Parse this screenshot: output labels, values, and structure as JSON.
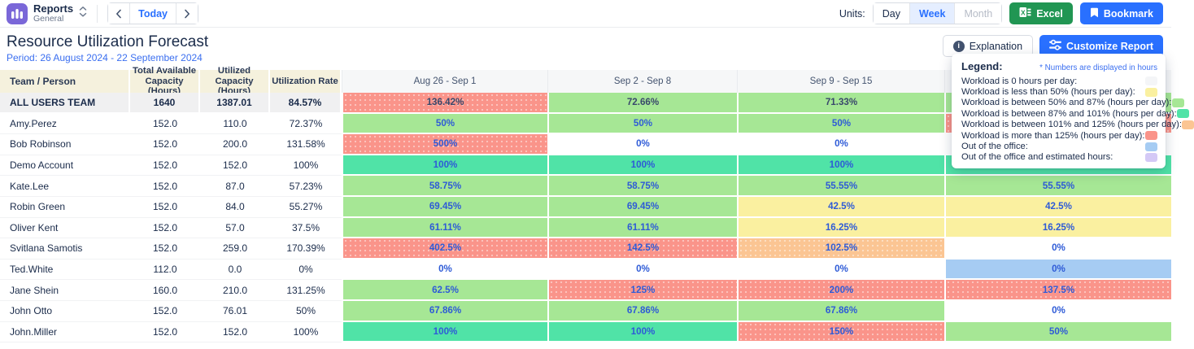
{
  "topbar": {
    "app": {
      "title": "Reports",
      "subtitle": "General"
    },
    "nav": {
      "today_label": "Today"
    },
    "units": {
      "label": "Units:",
      "options": [
        "Day",
        "Week",
        "Month"
      ],
      "selected": "Week"
    },
    "excel_label": "Excel",
    "bookmark_label": "Bookmark"
  },
  "report": {
    "title": "Resource Utilization Forecast",
    "period": "Period: 26 August 2024 - 22 September 2024",
    "explanation_label": "Explanation",
    "customize_label": "Customize Report"
  },
  "legend": {
    "title": "Legend:",
    "note": "* Numbers are displayed in hours",
    "items": [
      {
        "label": "Workload is 0 hours per day:",
        "color": "grey"
      },
      {
        "label": "Workload is less than 50% (hours per day):",
        "color": "yellow"
      },
      {
        "label": "Workload is between 50% and 87% (hours per day):",
        "color": "green"
      },
      {
        "label": "Workload is between 87% and 101% (hours per day):",
        "color": "teal"
      },
      {
        "label": "Workload is between 101% and 125% (hours per day):",
        "color": "orange"
      },
      {
        "label": "Workload is more than 125% (hours per day):",
        "color": "red"
      },
      {
        "label": "Out of the office:",
        "color": "blue"
      },
      {
        "label": "Out of the office and estimated hours:",
        "color": "lavender"
      }
    ]
  },
  "colors": {
    "accent_blue": "#2970FF",
    "excel_green": "#219653",
    "app_purple": "#7A67D8",
    "period_blue": "#3B6FF0",
    "cells": {
      "white": "#FFFFFF",
      "grey": "#F4F5F7",
      "yellow": "#FAF0A0",
      "green": "#A6E795",
      "teal": "#50E3A7",
      "orange": "#FBC593",
      "red": "#FA948A",
      "blue": "#A6CCF3",
      "lavender": "#D4C9F6"
    }
  },
  "table": {
    "columns": [
      "Team / Person",
      "Total Available Capacity (Hours)",
      "Utilized Capacity (Hours)",
      "Utilization Rate"
    ],
    "weeks": [
      "Aug 26 - Sep 1",
      "Sep 2 - Sep 8",
      "Sep 9 - Sep 15",
      ""
    ],
    "rows": [
      {
        "name": "ALL USERS TEAM",
        "capacity": "1640",
        "utilized": "1387.01",
        "rate": "84.57%",
        "weeks": [
          {
            "value": "136.42%",
            "color": "red"
          },
          {
            "value": "72.66%",
            "color": "green"
          },
          {
            "value": "71.33%",
            "color": "green"
          },
          {
            "value": "",
            "color": "green"
          }
        ]
      },
      {
        "name": "Amy.Perez",
        "capacity": "152.0",
        "utilized": "110.0",
        "rate": "72.37%",
        "weeks": [
          {
            "value": "50%",
            "color": "green"
          },
          {
            "value": "50%",
            "color": "green"
          },
          {
            "value": "50%",
            "color": "green"
          },
          {
            "value": "",
            "color": "red"
          }
        ]
      },
      {
        "name": "Bob Robinson",
        "capacity": "152.0",
        "utilized": "200.0",
        "rate": "131.58%",
        "weeks": [
          {
            "value": "500%",
            "color": "red"
          },
          {
            "value": "0%",
            "color": "white"
          },
          {
            "value": "0%",
            "color": "white"
          },
          {
            "value": "",
            "color": "white"
          }
        ]
      },
      {
        "name": "Demo Account",
        "capacity": "152.0",
        "utilized": "152.0",
        "rate": "100%",
        "weeks": [
          {
            "value": "100%",
            "color": "teal"
          },
          {
            "value": "100%",
            "color": "teal"
          },
          {
            "value": "100%",
            "color": "teal"
          },
          {
            "value": "",
            "color": "teal"
          }
        ]
      },
      {
        "name": "Kate.Lee",
        "capacity": "152.0",
        "utilized": "87.0",
        "rate": "57.23%",
        "weeks": [
          {
            "value": "58.75%",
            "color": "green"
          },
          {
            "value": "58.75%",
            "color": "green"
          },
          {
            "value": "55.55%",
            "color": "green"
          },
          {
            "value": "55.55%",
            "color": "green"
          }
        ]
      },
      {
        "name": "Robin Green",
        "capacity": "152.0",
        "utilized": "84.0",
        "rate": "55.27%",
        "weeks": [
          {
            "value": "69.45%",
            "color": "green"
          },
          {
            "value": "69.45%",
            "color": "green"
          },
          {
            "value": "42.5%",
            "color": "yellow"
          },
          {
            "value": "42.5%",
            "color": "yellow"
          }
        ]
      },
      {
        "name": "Oliver Kent",
        "capacity": "152.0",
        "utilized": "57.0",
        "rate": "37.5%",
        "weeks": [
          {
            "value": "61.11%",
            "color": "green"
          },
          {
            "value": "61.11%",
            "color": "green"
          },
          {
            "value": "16.25%",
            "color": "yellow"
          },
          {
            "value": "16.25%",
            "color": "yellow"
          }
        ]
      },
      {
        "name": "Svitlana Samotis",
        "capacity": "152.0",
        "utilized": "259.0",
        "rate": "170.39%",
        "weeks": [
          {
            "value": "402.5%",
            "color": "red"
          },
          {
            "value": "142.5%",
            "color": "red"
          },
          {
            "value": "102.5%",
            "color": "orange"
          },
          {
            "value": "0%",
            "color": "white"
          }
        ]
      },
      {
        "name": "Ted.White",
        "capacity": "112.0",
        "utilized": "0.0",
        "rate": "0%",
        "weeks": [
          {
            "value": "0%",
            "color": "white"
          },
          {
            "value": "0%",
            "color": "white"
          },
          {
            "value": "0%",
            "color": "white"
          },
          {
            "value": "0%",
            "color": "blue"
          }
        ]
      },
      {
        "name": "Jane Shein",
        "capacity": "160.0",
        "utilized": "210.0",
        "rate": "131.25%",
        "weeks": [
          {
            "value": "62.5%",
            "color": "green"
          },
          {
            "value": "125%",
            "color": "red"
          },
          {
            "value": "200%",
            "color": "red"
          },
          {
            "value": "137.5%",
            "color": "red"
          }
        ]
      },
      {
        "name": "John Otto",
        "capacity": "152.0",
        "utilized": "76.01",
        "rate": "50%",
        "weeks": [
          {
            "value": "67.86%",
            "color": "green"
          },
          {
            "value": "67.86%",
            "color": "green"
          },
          {
            "value": "67.86%",
            "color": "green"
          },
          {
            "value": "0%",
            "color": "white"
          }
        ]
      },
      {
        "name": "John.Miller",
        "capacity": "152.0",
        "utilized": "152.0",
        "rate": "100%",
        "weeks": [
          {
            "value": "100%",
            "color": "teal"
          },
          {
            "value": "100%",
            "color": "teal"
          },
          {
            "value": "150%",
            "color": "red"
          },
          {
            "value": "50%",
            "color": "green"
          }
        ]
      }
    ]
  }
}
